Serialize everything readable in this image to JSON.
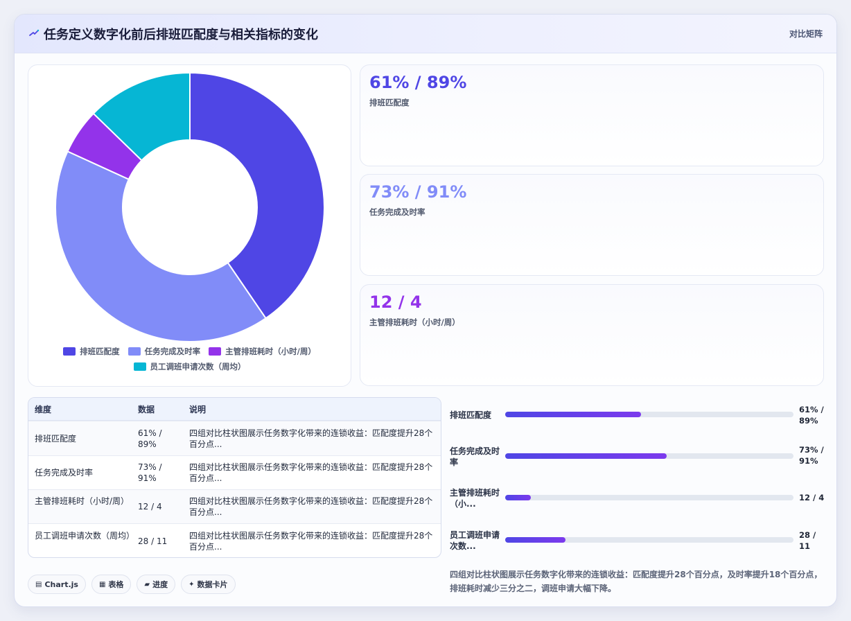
{
  "header": {
    "icon": "chart-spark-icon",
    "title": "任务定义数字化前后排班匹配度与相关指标的变化",
    "badge": "对比矩阵"
  },
  "colors": {
    "indigo": "#4f46e5",
    "periwinkle": "#818cf8",
    "violet": "#9333ea",
    "cyan": "#06b6d4"
  },
  "chart_data": {
    "type": "pie",
    "variant": "doughnut",
    "categories": [
      "排班匹配度",
      "任务完成及时率",
      "主管排班耗时（小时/周）",
      "员工调班申请次数（周均）"
    ],
    "values": [
      89,
      91,
      12,
      28
    ],
    "colors": [
      "#4f46e5",
      "#818cf8",
      "#9333ea",
      "#06b6d4"
    ],
    "legend_position": "bottom"
  },
  "stats": [
    {
      "value": "61% / 89%",
      "label": "排班匹配度",
      "color": "#4f46e5"
    },
    {
      "value": "73% / 91%",
      "label": "任务完成及时率",
      "color": "#818cf8"
    },
    {
      "value": "12 / 4",
      "label": "主管排班耗时（小时/周）",
      "color": "#9333ea"
    }
  ],
  "table": {
    "headers": [
      "维度",
      "数据",
      "说明"
    ],
    "rows": [
      {
        "dim": "排班匹配度",
        "data": "61% / 89%",
        "desc": "四组对比柱状图展示任务数字化带来的连锁收益：匹配度提升28个百分点..."
      },
      {
        "dim": "任务完成及时率",
        "data": "73% / 91%",
        "desc": "四组对比柱状图展示任务数字化带来的连锁收益：匹配度提升28个百分点..."
      },
      {
        "dim": "主管排班耗时（小时/周）",
        "data": "12 / 4",
        "desc": "四组对比柱状图展示任务数字化带来的连锁收益：匹配度提升28个百分点..."
      },
      {
        "dim": "员工调班申请次数（周均）",
        "data": "28 / 11",
        "desc": "四组对比柱状图展示任务数字化带来的连锁收益：匹配度提升28个百分点..."
      }
    ]
  },
  "progress": [
    {
      "label": "排班匹配度",
      "value": "61% / 89%",
      "fraction": 0.47
    },
    {
      "label": "任务完成及时率",
      "value": "73% / 91%",
      "fraction": 0.56
    },
    {
      "label": "主管排班耗时（小...",
      "value": "12 / 4",
      "fraction": 0.09
    },
    {
      "label": "员工调班申请次数...",
      "value": "28 / 11",
      "fraction": 0.21
    }
  ],
  "note": "四组对比柱状图展示任务数字化带来的连锁收益：匹配度提升28个百分点，及时率提升18个百分点，排班耗时减少三分之二，调班申请大幅下降。",
  "chips": [
    {
      "icon": "chart-icon",
      "label": "Chart.js"
    },
    {
      "icon": "table-icon",
      "label": "表格"
    },
    {
      "icon": "progress-icon",
      "label": "进度"
    },
    {
      "icon": "sparkle-icon",
      "label": "数据卡片"
    }
  ]
}
